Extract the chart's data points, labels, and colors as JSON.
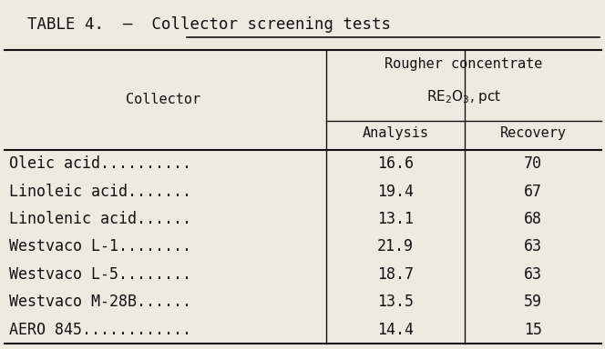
{
  "title": "TABLE 4.  –  Collector screening tests",
  "col_header_left": "Collector",
  "col_header_top": "Rougher concentrate",
  "col_header_sub_math": "$\\mathrm{RE_2O_3}$, pct",
  "col_header_analysis": "Analysis",
  "col_header_recovery": "Recovery",
  "rows": [
    [
      "Oleic acid..........",
      "16.6",
      "70"
    ],
    [
      "Linoleic acid.......",
      "19.4",
      "67"
    ],
    [
      "Linolenic acid......",
      "13.1",
      "68"
    ],
    [
      "Westvaco L-1........",
      "21.9",
      "63"
    ],
    [
      "Westvaco L-5........",
      "18.7",
      "63"
    ],
    [
      "Westvaco M-28B......",
      "13.5",
      "59"
    ],
    [
      "AERO 845............",
      "14.4",
      "15"
    ]
  ],
  "bg_color": "#edeae0",
  "text_color": "#111111",
  "font_family": "DejaVu Sans Mono",
  "title_fontsize": 12.5,
  "header_fontsize": 11,
  "cell_fontsize": 12,
  "fig_width": 6.64,
  "fig_height": 3.84,
  "dpi": 100
}
